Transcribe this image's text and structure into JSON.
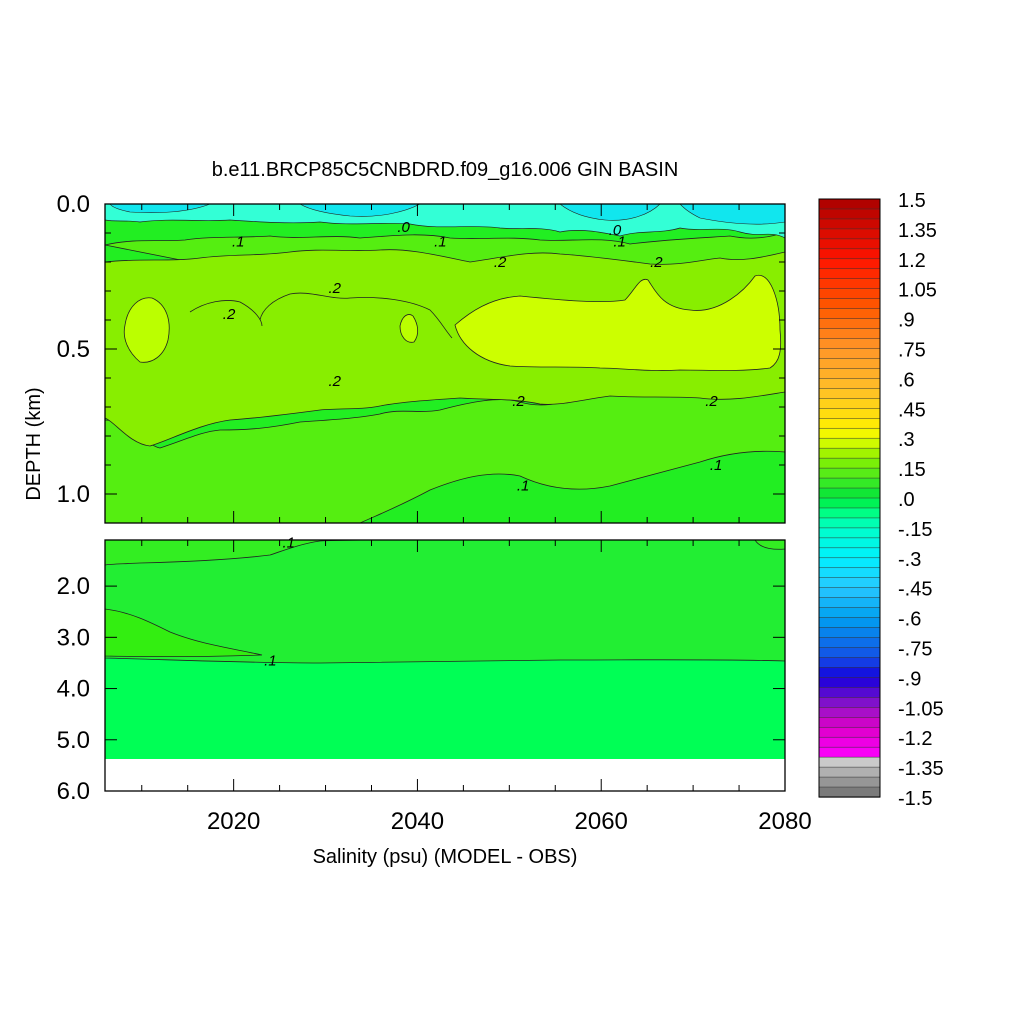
{
  "chart_data": {
    "type": "heatmap",
    "title": "b.e11.BRCP85C5CNBDRD.f09_g16.006 GIN BASIN",
    "xlabel": "Salinity (psu) (MODEL - OBS)",
    "ylabel": "DEPTH (km)",
    "xlim": [
      2006,
      2080
    ],
    "x_ticks": [
      "2020",
      "2040",
      "2060",
      "2080"
    ],
    "y_ticks_upper": [
      "0.0",
      "0.5",
      "1.0"
    ],
    "y_ticks_lower": [
      "2.0",
      "3.0",
      "4.0",
      "5.0",
      "6.0"
    ],
    "ylim_upper": [
      0,
      1.1
    ],
    "ylim_lower": [
      1.1,
      6.0
    ],
    "colorbar": {
      "min": -1.5,
      "max": 1.5,
      "labels": [
        "1.5",
        "1.35",
        "1.2",
        "1.05",
        ".9",
        ".75",
        ".6",
        ".45",
        ".3",
        ".15",
        ".0",
        "-.15",
        "-.3",
        "-.45",
        "-.6",
        "-.75",
        "-.9",
        "-1.05",
        "-1.2",
        "-1.35",
        "-1.5"
      ]
    },
    "contour_labels": [
      {
        "text": ".1",
        "x": 2020.5,
        "depth": 0.13
      },
      {
        "text": ".0",
        "x": 2038.5,
        "depth": 0.08
      },
      {
        "text": ".1",
        "x": 2042.5,
        "depth": 0.13
      },
      {
        "text": ".2",
        "x": 2049,
        "depth": 0.2
      },
      {
        "text": ".0",
        "x": 2061.5,
        "depth": 0.09
      },
      {
        "text": ".1",
        "x": 2062,
        "depth": 0.13
      },
      {
        "text": ".2",
        "x": 2066,
        "depth": 0.2
      },
      {
        "text": ".2",
        "x": 2019.5,
        "depth": 0.38
      },
      {
        "text": ".2",
        "x": 2031,
        "depth": 0.29
      },
      {
        "text": ".2",
        "x": 2031,
        "depth": 0.61
      },
      {
        "text": ".2",
        "x": 2051,
        "depth": 0.68
      },
      {
        "text": ".2",
        "x": 2072,
        "depth": 0.68
      },
      {
        "text": ".1",
        "x": 2051.5,
        "depth": 0.97
      },
      {
        "text": ".1",
        "x": 2072.5,
        "depth": 0.9
      },
      {
        "text": ".1",
        "x": 2026,
        "depth": 1.15
      },
      {
        "text": ".1",
        "x": 2024,
        "depth": 3.45
      }
    ]
  }
}
